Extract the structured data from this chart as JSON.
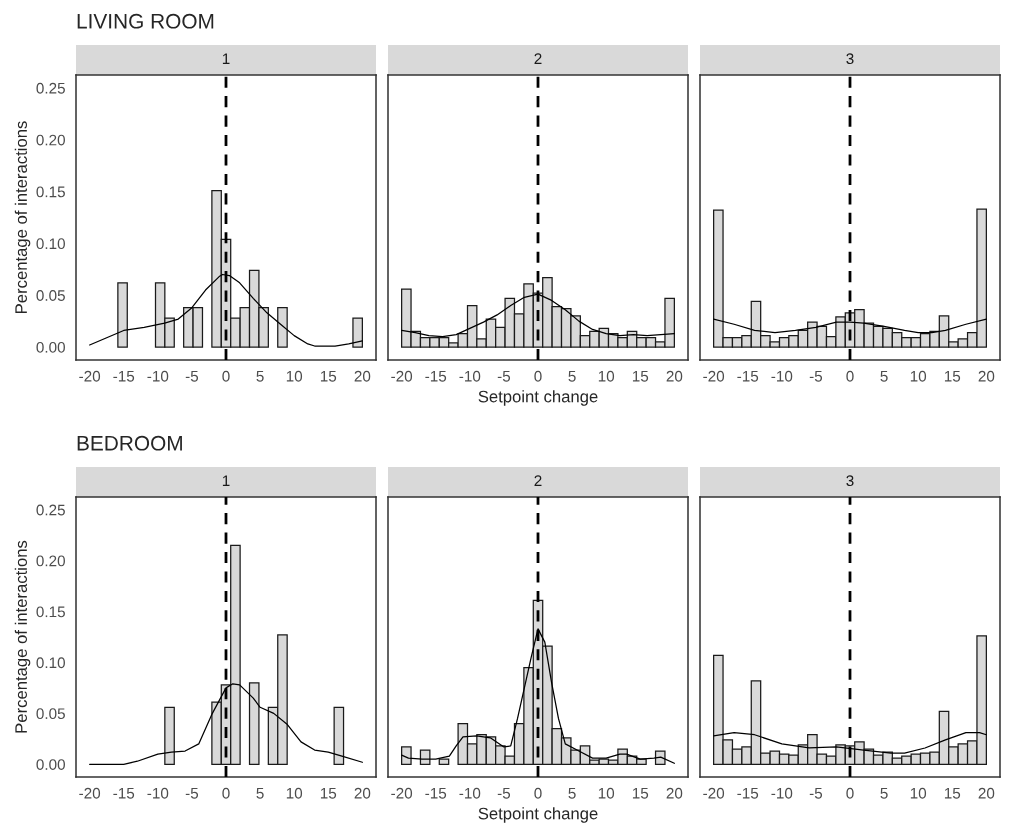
{
  "chart_data": [
    {
      "type": "histogram",
      "title": "LIVING ROOM",
      "subtitle": "1",
      "ylabel": "Percentage of interactions",
      "xlim": [
        -22,
        22
      ],
      "ylim": [
        -0.0125,
        0.2625
      ],
      "xticks": [
        -20,
        -15,
        -10,
        -5,
        0,
        5,
        10,
        15,
        20
      ],
      "yticks": [
        {
          "value": 0,
          "label": "0.00"
        },
        {
          "value": 0.05,
          "label": "0.05"
        },
        {
          "value": 0.1,
          "label": "0.10"
        },
        {
          "value": 0.15,
          "label": "0.15"
        },
        {
          "value": 0.2,
          "label": "0.20"
        },
        {
          "value": 0.25,
          "label": "0.25"
        }
      ],
      "ref_lines": [
        {
          "axis": "x",
          "value": 0,
          "color": "#000000",
          "line_style": "dashed"
        }
      ],
      "series": [
        {
          "type": "histogram",
          "color": "#d9d9d9",
          "bins": [
            -20,
            -18.62,
            -17.24,
            -15.86,
            -14.48,
            -13.1,
            -11.72,
            -10.34,
            -8.97,
            -7.59,
            -6.21,
            -4.83,
            -3.45,
            -2.07,
            -0.69,
            0.69,
            2.07,
            3.45,
            4.83,
            6.21,
            7.59,
            8.97,
            10.34,
            11.72,
            13.1,
            14.48,
            15.86,
            17.24,
            18.62,
            20
          ],
          "values": [
            0,
            0,
            0,
            0.062,
            0,
            0,
            0,
            0.062,
            0.028,
            0,
            0.038,
            0.038,
            0,
            0.151,
            0.104,
            0.028,
            0.038,
            0.074,
            0.038,
            0,
            0.038,
            0,
            0,
            0,
            0,
            0,
            0,
            0,
            0.028
          ]
        },
        {
          "type": "line",
          "color": "#000000",
          "x": [
            -20,
            -17.5,
            -15,
            -12,
            -9,
            -7,
            -5,
            -3,
            -1,
            -0.5,
            0.5,
            2,
            4,
            6,
            8,
            10,
            12,
            13,
            15,
            16,
            18,
            20
          ],
          "values": [
            0.002,
            0.009,
            0.016,
            0.019,
            0.023,
            0.027,
            0.038,
            0.055,
            0.068,
            0.07,
            0.069,
            0.062,
            0.047,
            0.033,
            0.022,
            0.011,
            0.003,
            0.001,
            0.001,
            0.001,
            0.003,
            0.006
          ]
        }
      ]
    },
    {
      "type": "histogram",
      "subtitle": "2",
      "xlabel": "Setpoint change",
      "tick_labels": "x",
      "xlim": [
        -22,
        22
      ],
      "ylim": [
        -0.0125,
        0.2625
      ],
      "xticks": [
        -20,
        -15,
        -10,
        -5,
        0,
        5,
        10,
        15,
        20
      ],
      "ref_lines": [
        {
          "axis": "x",
          "value": 0,
          "color": "#000000",
          "line_style": "dashed"
        }
      ],
      "series": [
        {
          "type": "histogram",
          "color": "#d9d9d9",
          "bins": [
            -20,
            -18.62,
            -17.24,
            -15.86,
            -14.48,
            -13.1,
            -11.72,
            -10.34,
            -8.97,
            -7.59,
            -6.21,
            -4.83,
            -3.45,
            -2.07,
            -0.69,
            0.69,
            2.07,
            3.45,
            4.83,
            6.21,
            7.59,
            8.97,
            10.34,
            11.72,
            13.1,
            14.48,
            15.86,
            17.24,
            18.62,
            20
          ],
          "values": [
            0.056,
            0.015,
            0.009,
            0.009,
            0.009,
            0.004,
            0.013,
            0.04,
            0.008,
            0.027,
            0.019,
            0.047,
            0.032,
            0.061,
            0.052,
            0.067,
            0.039,
            0.037,
            0.03,
            0.011,
            0.015,
            0.018,
            0.013,
            0.009,
            0.015,
            0.009,
            0.009,
            0.005,
            0.047
          ]
        },
        {
          "type": "line",
          "color": "#000000",
          "x": [
            -20,
            -18,
            -16,
            -14,
            -12,
            -10,
            -8,
            -6,
            -4,
            -2,
            0,
            2,
            4,
            6,
            8,
            10,
            12,
            14,
            16,
            18,
            20
          ],
          "values": [
            0.016,
            0.014,
            0.011,
            0.01,
            0.012,
            0.018,
            0.024,
            0.031,
            0.04,
            0.048,
            0.051,
            0.045,
            0.036,
            0.025,
            0.017,
            0.013,
            0.011,
            0.012,
            0.011,
            0.012,
            0.013
          ]
        }
      ]
    },
    {
      "type": "histogram",
      "subtitle": "3",
      "tick_labels": "x",
      "xlim": [
        -22,
        22
      ],
      "ylim": [
        -0.0125,
        0.2625
      ],
      "xticks": [
        -20,
        -15,
        -10,
        -5,
        0,
        5,
        10,
        15,
        20
      ],
      "ref_lines": [
        {
          "axis": "x",
          "value": 0,
          "color": "#000000",
          "line_style": "dashed"
        }
      ],
      "series": [
        {
          "type": "histogram",
          "color": "#d9d9d9",
          "bins": [
            -20,
            -18.62,
            -17.24,
            -15.86,
            -14.48,
            -13.1,
            -11.72,
            -10.34,
            -8.97,
            -7.59,
            -6.21,
            -4.83,
            -3.45,
            -2.07,
            -0.69,
            0.69,
            2.07,
            3.45,
            4.83,
            6.21,
            7.59,
            8.97,
            10.34,
            11.72,
            13.1,
            14.48,
            15.86,
            17.24,
            18.62,
            20
          ],
          "values": [
            0.132,
            0.009,
            0.009,
            0.011,
            0.044,
            0.011,
            0.005,
            0.009,
            0.011,
            0.016,
            0.024,
            0.02,
            0.01,
            0.029,
            0.033,
            0.036,
            0.023,
            0.02,
            0.018,
            0.014,
            0.009,
            0.009,
            0.013,
            0.015,
            0.03,
            0.005,
            0.008,
            0.014,
            0.133
          ]
        },
        {
          "type": "line",
          "color": "#000000",
          "x": [
            -20,
            -17,
            -14,
            -11,
            -8,
            -5,
            -2,
            0,
            2,
            5,
            8,
            10,
            12,
            14,
            17,
            20
          ],
          "values": [
            0.027,
            0.022,
            0.016,
            0.014,
            0.016,
            0.019,
            0.024,
            0.024,
            0.023,
            0.02,
            0.016,
            0.014,
            0.014,
            0.016,
            0.022,
            0.027
          ]
        }
      ]
    },
    {
      "type": "histogram",
      "title": "BEDROOM",
      "subtitle": "1",
      "ylabel": "Percentage of interactions",
      "xlim": [
        -22,
        22
      ],
      "ylim": [
        -0.0125,
        0.2625
      ],
      "xticks": [
        -20,
        -15,
        -10,
        -5,
        0,
        5,
        10,
        15,
        20
      ],
      "yticks": [
        {
          "value": 0,
          "label": "0.00"
        },
        {
          "value": 0.05,
          "label": "0.05"
        },
        {
          "value": 0.1,
          "label": "0.10"
        },
        {
          "value": 0.15,
          "label": "0.15"
        },
        {
          "value": 0.2,
          "label": "0.20"
        },
        {
          "value": 0.25,
          "label": "0.25"
        }
      ],
      "ref_lines": [
        {
          "axis": "x",
          "value": 0,
          "color": "#000000",
          "line_style": "dashed"
        }
      ],
      "series": [
        {
          "type": "histogram",
          "color": "#d9d9d9",
          "bins": [
            -20,
            -18.62,
            -17.24,
            -15.86,
            -14.48,
            -13.1,
            -11.72,
            -10.34,
            -8.97,
            -7.59,
            -6.21,
            -4.83,
            -3.45,
            -2.07,
            -0.69,
            0.69,
            2.07,
            3.45,
            4.83,
            6.21,
            7.59,
            8.97,
            10.34,
            11.72,
            13.1,
            14.48,
            15.86,
            17.24,
            18.62,
            20
          ],
          "values": [
            0,
            0,
            0,
            0,
            0,
            0,
            0,
            0,
            0.056,
            0,
            0,
            0,
            0,
            0.061,
            0.078,
            0.215,
            0,
            0.08,
            0,
            0.056,
            0.127,
            0,
            0,
            0,
            0,
            0,
            0.056,
            0,
            0
          ]
        },
        {
          "type": "line",
          "color": "#000000",
          "x": [
            -20,
            -15,
            -13,
            -10,
            -8,
            -6,
            -4,
            -2,
            0,
            1,
            2,
            4,
            5,
            7,
            9,
            11,
            13,
            15,
            17,
            20
          ],
          "values": [
            0,
            0,
            0.003,
            0.01,
            0.012,
            0.013,
            0.02,
            0.05,
            0.075,
            0.079,
            0.078,
            0.065,
            0.056,
            0.05,
            0.039,
            0.022,
            0.014,
            0.012,
            0.008,
            0.002
          ]
        }
      ]
    },
    {
      "type": "histogram",
      "subtitle": "2",
      "xlabel": "Setpoint change",
      "tick_labels": "x",
      "xlim": [
        -22,
        22
      ],
      "ylim": [
        -0.0125,
        0.2625
      ],
      "xticks": [
        -20,
        -15,
        -10,
        -5,
        0,
        5,
        10,
        15,
        20
      ],
      "ref_lines": [
        {
          "axis": "x",
          "value": 0,
          "color": "#000000",
          "line_style": "dashed"
        }
      ],
      "series": [
        {
          "type": "histogram",
          "color": "#d9d9d9",
          "bins": [
            -20,
            -18.62,
            -17.24,
            -15.86,
            -14.48,
            -13.1,
            -11.72,
            -10.34,
            -8.97,
            -7.59,
            -6.21,
            -4.83,
            -3.45,
            -2.07,
            -0.69,
            0.69,
            2.07,
            3.45,
            4.83,
            6.21,
            7.59,
            8.97,
            10.34,
            11.72,
            13.1,
            14.48,
            15.86,
            17.24,
            18.62,
            20
          ],
          "values": [
            0.017,
            0,
            0.014,
            0,
            0.005,
            0,
            0.04,
            0.02,
            0.029,
            0.027,
            0.018,
            0.008,
            0.04,
            0.095,
            0.161,
            0.116,
            0.035,
            0.026,
            0.014,
            0.018,
            0.004,
            0.005,
            0.004,
            0.015,
            0.008,
            0.005,
            0,
            0.013,
            0
          ]
        },
        {
          "type": "line",
          "color": "#000000",
          "x": [
            -20,
            -19,
            -17,
            -15,
            -13,
            -12,
            -11,
            -9,
            -7,
            -5,
            -4,
            -3,
            -1,
            0,
            1,
            2,
            3,
            4,
            6,
            8,
            10,
            12,
            13,
            15,
            17,
            18,
            20
          ],
          "values": [
            0.009,
            0.006,
            0.005,
            0.005,
            0.008,
            0.018,
            0.027,
            0.028,
            0.026,
            0.017,
            0.018,
            0.045,
            0.105,
            0.133,
            0.12,
            0.08,
            0.045,
            0.02,
            0.013,
            0.006,
            0.006,
            0.01,
            0.01,
            0.005,
            0.006,
            0.007,
            0.001
          ]
        }
      ]
    },
    {
      "type": "histogram",
      "subtitle": "3",
      "tick_labels": "x",
      "xlim": [
        -22,
        22
      ],
      "ylim": [
        -0.0125,
        0.2625
      ],
      "xticks": [
        -20,
        -15,
        -10,
        -5,
        0,
        5,
        10,
        15,
        20
      ],
      "ref_lines": [
        {
          "axis": "x",
          "value": 0,
          "color": "#000000",
          "line_style": "dashed"
        }
      ],
      "series": [
        {
          "type": "histogram",
          "color": "#d9d9d9",
          "bins": [
            -20,
            -18.62,
            -17.24,
            -15.86,
            -14.48,
            -13.1,
            -11.72,
            -10.34,
            -8.97,
            -7.59,
            -6.21,
            -4.83,
            -3.45,
            -2.07,
            -0.69,
            0.69,
            2.07,
            3.45,
            4.83,
            6.21,
            7.59,
            8.97,
            10.34,
            11.72,
            13.1,
            14.48,
            15.86,
            17.24,
            18.62,
            20
          ],
          "values": [
            0.107,
            0.024,
            0.015,
            0.017,
            0.082,
            0.011,
            0.013,
            0.01,
            0.009,
            0.019,
            0.029,
            0.01,
            0.008,
            0.019,
            0.018,
            0.022,
            0.015,
            0.009,
            0.012,
            0.006,
            0.008,
            0.01,
            0.011,
            0.012,
            0.052,
            0.017,
            0.02,
            0.023,
            0.126
          ]
        },
        {
          "type": "line",
          "color": "#000000",
          "x": [
            -20,
            -17,
            -14,
            -10,
            -6,
            -2,
            2,
            6,
            8,
            11,
            14,
            17,
            19,
            20
          ],
          "values": [
            0.028,
            0.031,
            0.029,
            0.02,
            0.016,
            0.017,
            0.014,
            0.011,
            0.011,
            0.016,
            0.024,
            0.031,
            0.031,
            0.029
          ]
        }
      ]
    }
  ]
}
